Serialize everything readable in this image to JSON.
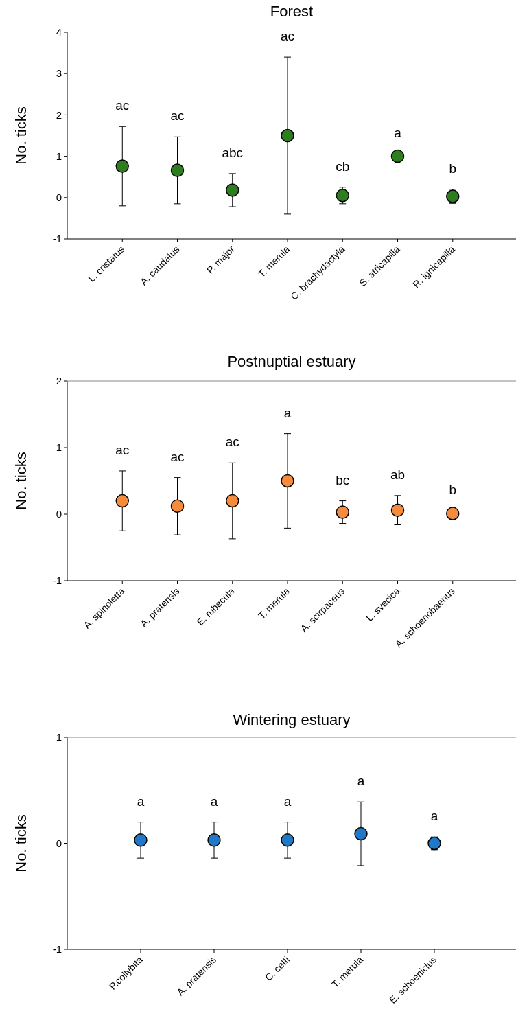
{
  "chart_data": [
    {
      "type": "scatter",
      "title": "Forest",
      "ylabel": "No. ticks",
      "categories": [
        "L. cristatus",
        "A. caudatus",
        "P. major",
        "T. merula",
        "C. brachydactyla",
        "S. atricapilla",
        "R. ignicapilla"
      ],
      "values": [
        0.76,
        0.66,
        0.18,
        1.5,
        0.05,
        1.0,
        0.03
      ],
      "errors": [
        0.96,
        0.81,
        0.4,
        1.9,
        0.2,
        null,
        0.17
      ],
      "color": "#2e7d1f",
      "marker": "circle",
      "ylim": [
        -1,
        4
      ],
      "yticks": [
        -1,
        0,
        1,
        2,
        3,
        4
      ],
      "annotations": [
        "ac",
        "ac",
        "abc",
        "ac",
        "cb",
        "a",
        "b"
      ]
    },
    {
      "type": "scatter",
      "title": "Postnuptial estuary",
      "ylabel": "No. ticks",
      "categories": [
        "A. spinoletta",
        "A. pratensis",
        "E. rubecula",
        "T. merula",
        "A. scirpaceus",
        "L. svecica",
        "A. schoenobaenus"
      ],
      "values": [
        0.2,
        0.12,
        0.2,
        0.5,
        0.03,
        0.06,
        0.01
      ],
      "errors": [
        0.45,
        0.43,
        0.57,
        0.71,
        0.17,
        0.22,
        null
      ],
      "color": "#f58b3c",
      "marker": "circle",
      "ylim": [
        -1,
        2
      ],
      "yticks": [
        -1,
        0,
        1,
        2
      ],
      "annotations": [
        "ac",
        "ac",
        "ac",
        "a",
        "bc",
        "ab",
        "b"
      ]
    },
    {
      "type": "scatter",
      "title": "Wintering estuary",
      "ylabel": "No. ticks",
      "categories": [
        "P.collybita",
        "A. pratensis",
        "C. cetti",
        "T. merula",
        "E. schoeniclus"
      ],
      "values": [
        0.03,
        0.03,
        0.03,
        0.09,
        0.0
      ],
      "errors": [
        0.17,
        0.17,
        0.17,
        0.3,
        0.06
      ],
      "color": "#1f78c8",
      "marker": "circle",
      "ylim": [
        -1,
        1
      ],
      "yticks": [
        -1,
        0,
        1
      ],
      "annotations": [
        "a",
        "a",
        "a",
        "a",
        "a"
      ]
    }
  ]
}
